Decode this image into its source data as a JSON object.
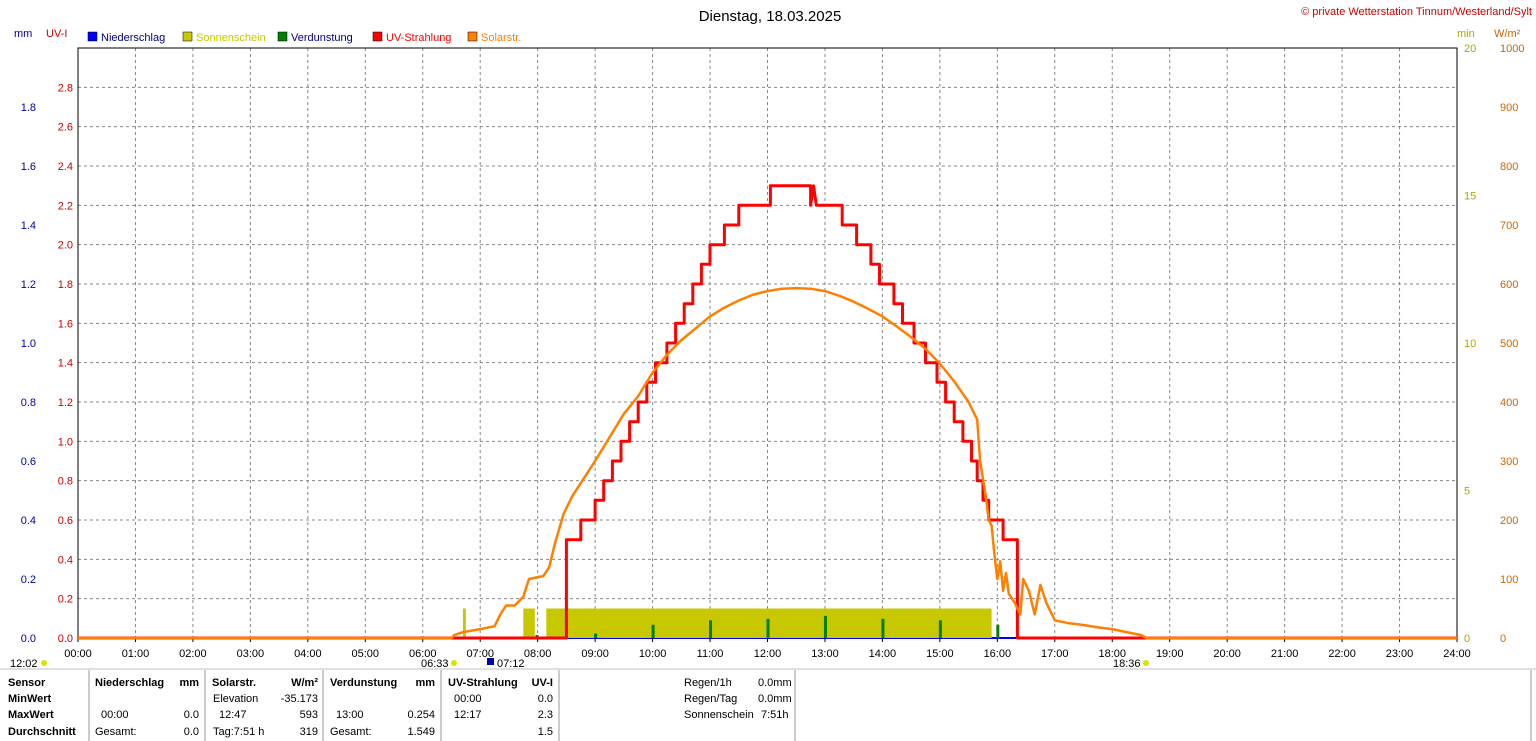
{
  "chart_data": {
    "type": "line",
    "title": "Dienstag, 18.03.2025",
    "credit": "© private Wetterstation Tinnum/Westerland/Sylt",
    "x_ticks": [
      "00:00",
      "01:00",
      "02:00",
      "03:00",
      "04:00",
      "05:00",
      "06:00",
      "07:00",
      "08:00",
      "09:00",
      "10:00",
      "11:00",
      "12:00",
      "13:00",
      "14:00",
      "15:00",
      "16:00",
      "17:00",
      "18:00",
      "19:00",
      "20:00",
      "21:00",
      "22:00",
      "23:00",
      "24:00"
    ],
    "xlim": [
      0,
      24
    ],
    "axes": {
      "mm": {
        "label": "mm",
        "ticks": [
          "0.0",
          "0.2",
          "0.4",
          "0.6",
          "0.8",
          "1.0",
          "1.2",
          "1.4",
          "1.6",
          "1.8"
        ],
        "ylim": [
          0,
          2.0
        ]
      },
      "uv": {
        "label": "UV-I",
        "ticks": [
          "0.0",
          "0.2",
          "0.4",
          "0.6",
          "0.8",
          "1.0",
          "1.2",
          "1.4",
          "1.6",
          "1.8",
          "2.0",
          "2.2",
          "2.4",
          "2.6",
          "2.8"
        ],
        "ylim": [
          0,
          3.0
        ]
      },
      "min": {
        "label": "min",
        "ticks": [
          "0",
          "5",
          "10",
          "15",
          "20"
        ],
        "ylim": [
          0,
          20
        ]
      },
      "wm2": {
        "label": "W/m²",
        "ticks": [
          "0",
          "100",
          "200",
          "300",
          "400",
          "500",
          "600",
          "700",
          "800",
          "900",
          "1000"
        ],
        "ylim": [
          0,
          1000
        ]
      }
    },
    "legend": [
      {
        "name": "Niederschlag",
        "color": "#0000ff"
      },
      {
        "name": "Sonnenschein",
        "color": "#c8c800"
      },
      {
        "name": "Verdunstung",
        "color": "#008000"
      },
      {
        "name": "UV-Strahlung",
        "color": "#ff0000"
      },
      {
        "name": "Solarstr.",
        "color": "#ff8000"
      }
    ],
    "series": [
      {
        "name": "UV-Strahlung",
        "axis": "uv",
        "color": "#ff0000",
        "step": true,
        "points": [
          [
            0,
            0
          ],
          [
            8.5,
            0
          ],
          [
            8.5,
            0.5
          ],
          [
            8.75,
            0.5
          ],
          [
            8.75,
            0.6
          ],
          [
            9.0,
            0.6
          ],
          [
            9.0,
            0.7
          ],
          [
            9.15,
            0.7
          ],
          [
            9.15,
            0.8
          ],
          [
            9.3,
            0.8
          ],
          [
            9.3,
            0.9
          ],
          [
            9.45,
            0.9
          ],
          [
            9.45,
            1.0
          ],
          [
            9.6,
            1.0
          ],
          [
            9.6,
            1.1
          ],
          [
            9.75,
            1.1
          ],
          [
            9.75,
            1.2
          ],
          [
            9.9,
            1.2
          ],
          [
            9.9,
            1.3
          ],
          [
            10.05,
            1.3
          ],
          [
            10.05,
            1.4
          ],
          [
            10.25,
            1.4
          ],
          [
            10.25,
            1.5
          ],
          [
            10.4,
            1.5
          ],
          [
            10.4,
            1.6
          ],
          [
            10.55,
            1.6
          ],
          [
            10.55,
            1.7
          ],
          [
            10.7,
            1.7
          ],
          [
            10.7,
            1.8
          ],
          [
            10.85,
            1.8
          ],
          [
            10.85,
            1.9
          ],
          [
            11.0,
            1.9
          ],
          [
            11.0,
            2.0
          ],
          [
            11.25,
            2.0
          ],
          [
            11.25,
            2.1
          ],
          [
            11.5,
            2.1
          ],
          [
            11.5,
            2.2
          ],
          [
            12.05,
            2.2
          ],
          [
            12.05,
            2.3
          ],
          [
            12.75,
            2.3
          ],
          [
            12.75,
            2.2
          ],
          [
            12.8,
            2.3
          ],
          [
            12.85,
            2.2
          ],
          [
            13.3,
            2.2
          ],
          [
            13.3,
            2.1
          ],
          [
            13.55,
            2.1
          ],
          [
            13.55,
            2.0
          ],
          [
            13.8,
            2.0
          ],
          [
            13.8,
            1.9
          ],
          [
            13.95,
            1.9
          ],
          [
            13.95,
            1.8
          ],
          [
            14.2,
            1.8
          ],
          [
            14.2,
            1.7
          ],
          [
            14.35,
            1.7
          ],
          [
            14.35,
            1.6
          ],
          [
            14.55,
            1.6
          ],
          [
            14.55,
            1.5
          ],
          [
            14.75,
            1.5
          ],
          [
            14.75,
            1.4
          ],
          [
            14.95,
            1.4
          ],
          [
            14.95,
            1.3
          ],
          [
            15.1,
            1.3
          ],
          [
            15.1,
            1.2
          ],
          [
            15.25,
            1.2
          ],
          [
            15.25,
            1.1
          ],
          [
            15.4,
            1.1
          ],
          [
            15.4,
            1.0
          ],
          [
            15.55,
            1.0
          ],
          [
            15.55,
            0.9
          ],
          [
            15.65,
            0.9
          ],
          [
            15.65,
            0.8
          ],
          [
            15.75,
            0.8
          ],
          [
            15.75,
            0.7
          ],
          [
            15.85,
            0.7
          ],
          [
            15.85,
            0.6
          ],
          [
            16.1,
            0.6
          ],
          [
            16.1,
            0.5
          ],
          [
            16.35,
            0.5
          ],
          [
            16.35,
            0
          ],
          [
            24,
            0
          ]
        ]
      },
      {
        "name": "Solarstr.",
        "axis": "wm2",
        "color": "#ff8000",
        "step": false,
        "points": [
          [
            0,
            0
          ],
          [
            6.5,
            0
          ],
          [
            6.55,
            5
          ],
          [
            6.7,
            10
          ],
          [
            7.0,
            15
          ],
          [
            7.25,
            20
          ],
          [
            7.35,
            40
          ],
          [
            7.45,
            55
          ],
          [
            7.6,
            55
          ],
          [
            7.75,
            70
          ],
          [
            7.85,
            100
          ],
          [
            8.1,
            105
          ],
          [
            8.2,
            120
          ],
          [
            8.3,
            160
          ],
          [
            8.45,
            210
          ],
          [
            8.6,
            240
          ],
          [
            8.8,
            270
          ],
          [
            9.0,
            300
          ],
          [
            9.25,
            340
          ],
          [
            9.5,
            380
          ],
          [
            9.75,
            410
          ],
          [
            10.0,
            450
          ],
          [
            10.25,
            480
          ],
          [
            10.5,
            505
          ],
          [
            10.75,
            525
          ],
          [
            11.0,
            545
          ],
          [
            11.25,
            560
          ],
          [
            11.5,
            572
          ],
          [
            11.75,
            582
          ],
          [
            12.0,
            588
          ],
          [
            12.25,
            592
          ],
          [
            12.5,
            593
          ],
          [
            12.75,
            592
          ],
          [
            13.0,
            588
          ],
          [
            13.25,
            580
          ],
          [
            13.5,
            570
          ],
          [
            13.75,
            558
          ],
          [
            14.0,
            545
          ],
          [
            14.25,
            528
          ],
          [
            14.5,
            510
          ],
          [
            14.75,
            490
          ],
          [
            15.0,
            465
          ],
          [
            15.25,
            435
          ],
          [
            15.5,
            400
          ],
          [
            15.65,
            370
          ],
          [
            15.7,
            300
          ],
          [
            15.8,
            240
          ],
          [
            15.85,
            200
          ],
          [
            15.9,
            190
          ],
          [
            15.95,
            140
          ],
          [
            16.0,
            100
          ],
          [
            16.05,
            130
          ],
          [
            16.1,
            80
          ],
          [
            16.15,
            110
          ],
          [
            16.2,
            75
          ],
          [
            16.3,
            60
          ],
          [
            16.4,
            40
          ],
          [
            16.45,
            100
          ],
          [
            16.55,
            80
          ],
          [
            16.65,
            40
          ],
          [
            16.75,
            90
          ],
          [
            16.85,
            60
          ],
          [
            17.0,
            30
          ],
          [
            17.25,
            25
          ],
          [
            17.5,
            22
          ],
          [
            17.75,
            18
          ],
          [
            18.0,
            15
          ],
          [
            18.25,
            10
          ],
          [
            18.5,
            5
          ],
          [
            18.6,
            0
          ],
          [
            24,
            0
          ]
        ]
      },
      {
        "name": "Sonnenschein",
        "axis": "min",
        "color": "#c8c800",
        "type": "bars",
        "bars": [
          [
            6.7,
            6.75,
            1.0
          ],
          [
            7.75,
            7.95,
            1.0
          ],
          [
            8.15,
            15.9,
            1.0
          ]
        ]
      },
      {
        "name": "Verdunstung",
        "axis": "mm",
        "color": "#008000",
        "type": "bars",
        "bars": [
          [
            7.98,
            0.01
          ],
          [
            9.0,
            0.015
          ],
          [
            10.0,
            0.045
          ],
          [
            11.0,
            0.06
          ],
          [
            12.0,
            0.065
          ],
          [
            13.0,
            0.075
          ],
          [
            14.0,
            0.065
          ],
          [
            15.0,
            0.06
          ],
          [
            16.0,
            0.045
          ],
          [
            17.0,
            0.005
          ]
        ]
      }
    ],
    "markers": {
      "sunrise": "06:33",
      "sunset": "18:36",
      "solar_noon": "12:02",
      "mode_time": "07:12"
    }
  },
  "table": {
    "headers": [
      "Sensor",
      "Niederschlag",
      "mm",
      "Solarstr.",
      "W/m²",
      "Verdunstung",
      "mm",
      "UV-Strahlung",
      "UV-I"
    ],
    "rows": [
      {
        "label": "MinWert",
        "c1": "",
        "c2": "",
        "c3": "Elevation",
        "c4": "-35.173",
        "c5": "",
        "c6": "",
        "c7": "00:00",
        "c8": "0.0"
      },
      {
        "label": "MaxWert",
        "c1": "00:00",
        "c2": "0.0",
        "c3": "12:47",
        "c4": "593",
        "c5": "13:00",
        "c6": "0.254",
        "c7": "12:17",
        "c8": "2.3"
      },
      {
        "label": "Durchschnitt",
        "c1": "Gesamt:",
        "c2": "0.0",
        "c3": "Tag:7:51 h",
        "c4": "319",
        "c5": "Gesamt:",
        "c6": "1.549",
        "c7": "",
        "c8": "1.5"
      }
    ],
    "side": [
      {
        "label": "Regen/1h",
        "value": "0.0mm"
      },
      {
        "label": "Regen/Tag",
        "value": "0.0mm"
      },
      {
        "label": "Sonnenschein",
        "value": "7:51h"
      }
    ]
  }
}
